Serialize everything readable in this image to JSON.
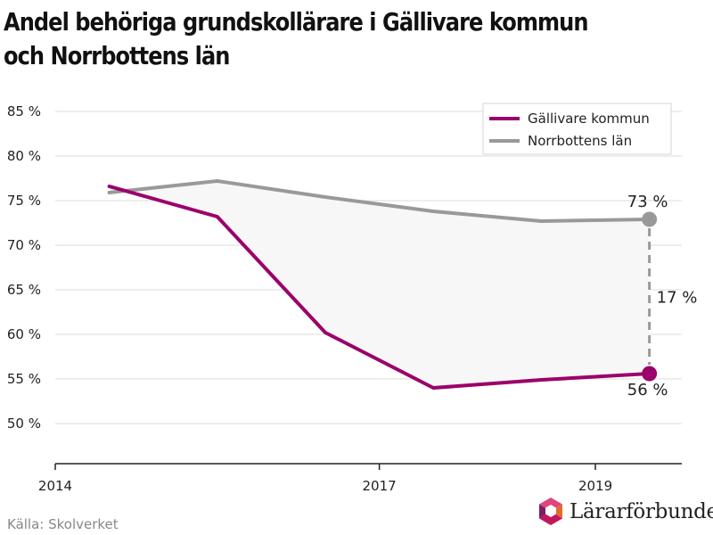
{
  "chart_data": {
    "type": "line",
    "title": "Andel behöriga grundskollärare i Gällivare kommun och Norrbottens län",
    "x": [
      2014.5,
      2015.5,
      2016.5,
      2017.5,
      2018.5,
      2019.5
    ],
    "x_ticks": [
      2014,
      2017,
      2019
    ],
    "x_tick_labels": [
      "2014",
      "2017",
      "2019"
    ],
    "xlim": [
      2014,
      2019.8
    ],
    "ylim": [
      45.5,
      88
    ],
    "y_ticks": [
      50,
      55,
      60,
      65,
      70,
      75,
      80,
      85
    ],
    "y_tick_labels": [
      "50 %",
      "55 %",
      "60 %",
      "65 %",
      "70 %",
      "75 %",
      "80 %",
      "85 %"
    ],
    "grid": true,
    "legend_position": "top-right",
    "series": [
      {
        "name": "Gällivare kommun",
        "color": "#9b006b",
        "values": [
          76.6,
          73.2,
          60.2,
          54.0,
          54.9,
          55.6
        ]
      },
      {
        "name": "Norrbottens län",
        "color": "#999999",
        "values": [
          75.9,
          77.2,
          75.4,
          73.8,
          72.7,
          72.9
        ]
      }
    ],
    "fill_between": {
      "color": "#f7f7f7"
    },
    "annotations": {
      "top_label": "73 %",
      "bottom_label": "56 %",
      "diff_label": "17 %"
    }
  },
  "footer": {
    "source": "Källa: Skolverket",
    "brand": "Lärarförbundet",
    "brand_colors": [
      "#e0457b",
      "#c0185c",
      "#7d1f5f",
      "#e46a2c"
    ]
  }
}
